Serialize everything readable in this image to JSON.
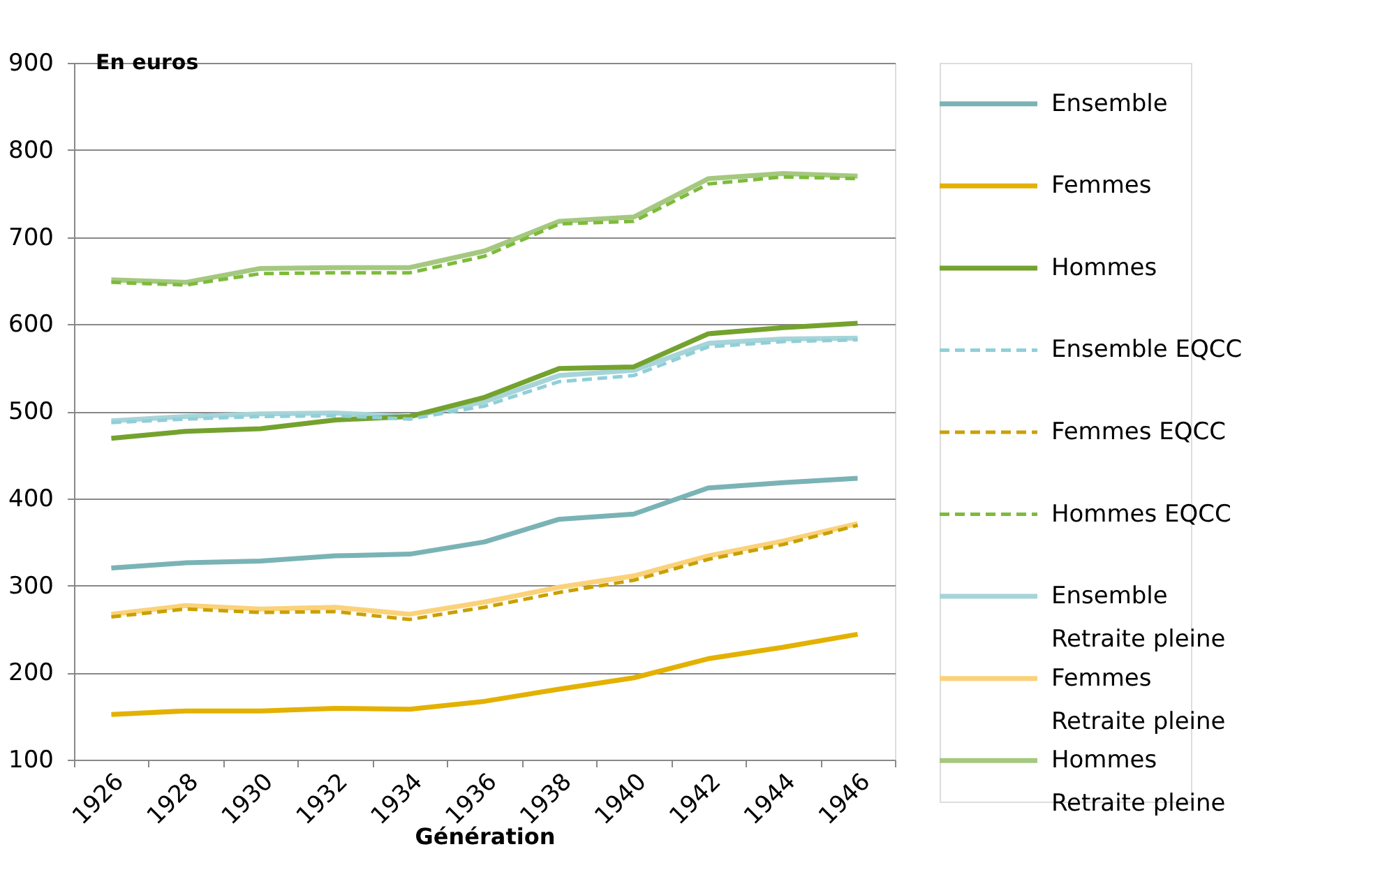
{
  "chart_data": {
    "type": "line",
    "ylabel": "En euros",
    "xlabel": "Génération",
    "categories": [
      "1926",
      "1928",
      "1930",
      "1932",
      "1934",
      "1936",
      "1938",
      "1940",
      "1942",
      "1944",
      "1946"
    ],
    "ylim": [
      100,
      900
    ],
    "yticks": [
      100,
      200,
      300,
      400,
      500,
      600,
      700,
      800,
      900
    ],
    "grid": "y",
    "legend": "right",
    "series": [
      {
        "name": "Hommes Retraite pleine",
        "color": "#a5c880",
        "line_style": "solid",
        "values": [
          651,
          648,
          664,
          665,
          665,
          684,
          718,
          723,
          767,
          773,
          770
        ]
      },
      {
        "name": "Femmes Retraite pleine",
        "color": "#fbd27a",
        "line_style": "solid",
        "values": [
          267,
          277,
          273,
          275,
          267,
          281,
          298,
          311,
          334,
          351,
          371
        ]
      },
      {
        "name": "Ensemble Retraite pleine",
        "color": "#a7d4d9",
        "line_style": "solid",
        "values": [
          489,
          494,
          497,
          498,
          494,
          511,
          541,
          547,
          578,
          583,
          584
        ]
      },
      {
        "name": "Ensemble",
        "color": "#7ab3b5",
        "line_style": "solid",
        "values": [
          320,
          326,
          328,
          334,
          336,
          350,
          376,
          382,
          412,
          418,
          423
        ]
      },
      {
        "name": "Femmes",
        "color": "#e3b100",
        "line_style": "solid",
        "values": [
          152,
          156,
          156,
          159,
          158,
          167,
          181,
          194,
          216,
          229,
          244
        ]
      },
      {
        "name": "Hommes",
        "color": "#74a22e",
        "line_style": "solid",
        "values": [
          469,
          477,
          480,
          490,
          494,
          516,
          549,
          551,
          589,
          596,
          601
        ]
      },
      {
        "name": "Ensemble EQCC",
        "color": "#8fcfd8",
        "line_style": "dashed",
        "values": [
          487,
          491,
          494,
          495,
          491,
          506,
          534,
          541,
          574,
          580,
          582
        ]
      },
      {
        "name": "Femmes EQCC",
        "color": "#c9a000",
        "line_style": "dashed",
        "values": [
          264,
          273,
          269,
          270,
          261,
          275,
          292,
          306,
          330,
          347,
          369
        ]
      },
      {
        "name": "Hommes EQCC",
        "color": "#7dbb3b",
        "line_style": "dashed",
        "values": [
          648,
          645,
          658,
          659,
          659,
          678,
          715,
          718,
          761,
          769,
          767
        ]
      }
    ]
  }
}
